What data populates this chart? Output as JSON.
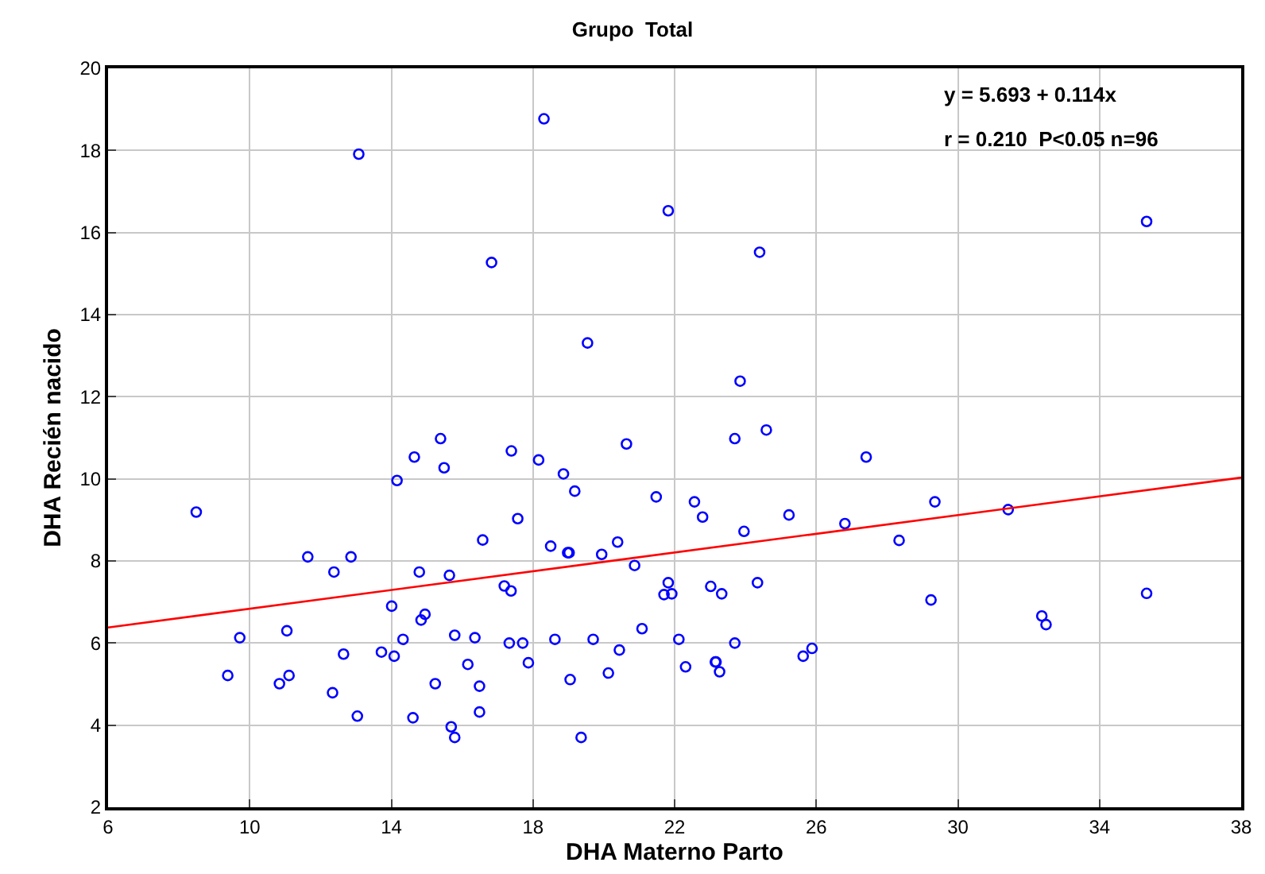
{
  "chart_data": {
    "type": "scatter",
    "title": "Grupo  Total",
    "xlabel": "DHA Materno Parto",
    "ylabel": "DHA Recién nacido",
    "xlim": [
      6,
      38
    ],
    "xticks": [
      6,
      10,
      14,
      18,
      22,
      26,
      30,
      34,
      38
    ],
    "ylim": [
      2,
      20
    ],
    "yticks": [
      2,
      4,
      6,
      8,
      10,
      12,
      14,
      16,
      18,
      20
    ],
    "grid": true,
    "marker": "circle",
    "annotations": [
      "y = 5.693 + 0.114x",
      "r = 0.210  P<0.05 n=96"
    ],
    "series": [
      {
        "color": "#0000ff",
        "x": [
          8.49,
          9.72,
          9.38,
          10.84,
          11.11,
          11.05,
          11.64,
          12.86,
          12.38,
          12.65,
          12.34,
          13.04,
          13.72,
          14.08,
          14.01,
          14.33,
          14.16,
          14.61,
          14.65,
          14.79,
          14.84,
          14.95,
          15.24,
          15.39,
          15.49,
          15.64,
          15.69,
          15.79,
          15.79,
          16.16,
          16.36,
          16.49,
          16.49,
          16.58,
          17.19,
          17.38,
          17.39,
          17.33,
          17.57,
          17.71,
          17.87,
          18.16,
          18.5,
          18.62,
          18.86,
          18.98,
          19.02,
          19.18,
          19.05,
          19.36,
          19.7,
          19.94,
          20.13,
          20.39,
          20.44,
          20.64,
          20.87,
          21.08,
          21.48,
          21.82,
          21.7,
          21.92,
          22.12,
          22.31,
          22.56,
          22.79,
          23.02,
          23.33,
          23.15,
          23.17,
          23.27,
          23.7,
          23.96,
          23.7,
          24.59,
          24.34,
          25.23,
          25.63,
          25.88,
          26.81,
          27.41,
          28.34,
          29.24,
          29.35,
          31.42,
          32.37,
          32.49,
          35.33,
          13.08,
          18.31,
          16.83,
          21.82,
          19.54,
          24.4,
          23.85,
          35.33
        ],
        "values": [
          9.19,
          6.13,
          5.21,
          5.01,
          5.21,
          6.3,
          8.1,
          8.1,
          7.73,
          5.73,
          4.79,
          4.22,
          5.78,
          5.68,
          6.9,
          6.09,
          9.96,
          4.18,
          10.53,
          7.73,
          6.56,
          6.7,
          5.01,
          10.98,
          10.27,
          7.65,
          3.96,
          3.7,
          6.19,
          5.48,
          6.13,
          4.95,
          4.32,
          8.51,
          7.39,
          7.27,
          10.68,
          6.0,
          9.03,
          6.0,
          5.52,
          10.46,
          8.36,
          6.09,
          10.12,
          8.2,
          8.2,
          9.7,
          5.11,
          3.7,
          6.09,
          8.16,
          5.27,
          8.46,
          5.83,
          10.85,
          7.89,
          6.35,
          9.56,
          7.47,
          7.18,
          7.2,
          6.09,
          5.42,
          9.44,
          9.07,
          7.38,
          7.2,
          5.54,
          5.54,
          5.3,
          6.0,
          8.72,
          10.98,
          11.19,
          7.47,
          9.12,
          5.68,
          5.87,
          8.91,
          10.53,
          8.5,
          7.05,
          9.44,
          9.25,
          6.66,
          6.45,
          7.21,
          17.91,
          18.77,
          15.27,
          16.53,
          13.31,
          15.52,
          12.38,
          16.27
        ]
      },
      {
        "type": "line",
        "color": "#ff0000",
        "x": [
          6,
          38
        ],
        "values": [
          6.38,
          10.03
        ],
        "marker": "none"
      }
    ]
  }
}
